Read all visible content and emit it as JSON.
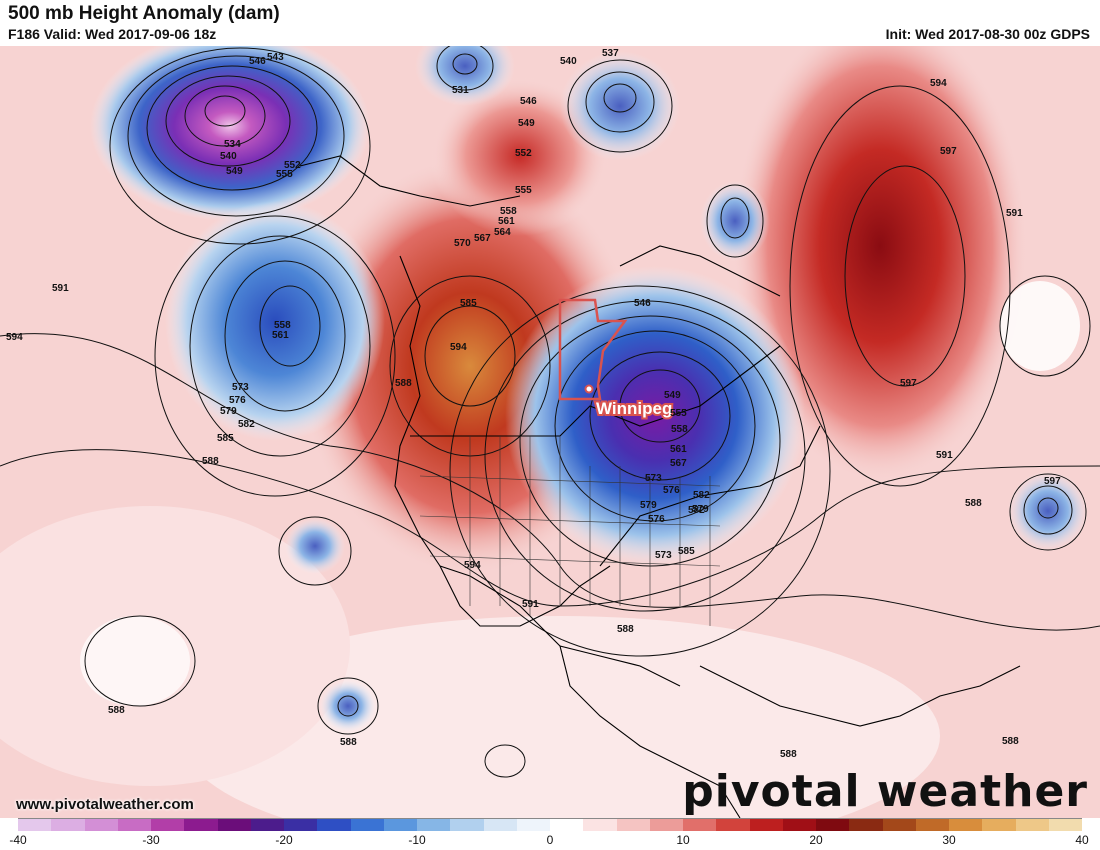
{
  "header": {
    "title": "500 mb Height Anomaly (dam)",
    "valid": "F186 Valid: Wed 2017-09-06 18z",
    "init": "Init: Wed 2017-08-30 00z GDPS"
  },
  "map": {
    "city_label": "Winnipeg",
    "website": "www.pivotalweather.com",
    "brand": "pivotal weather"
  },
  "colorbar": {
    "min": -40,
    "max": 40,
    "ticks": [
      "-40",
      "-30",
      "-20",
      "-10",
      "0",
      "10",
      "20",
      "30",
      "40"
    ],
    "colors": [
      "#e4c8ec",
      "#dcaee3",
      "#d38fd6",
      "#c86cc4",
      "#b23ea8",
      "#8c1b8f",
      "#6b0d7a",
      "#4c1c8c",
      "#3a2fa4",
      "#2e4fc4",
      "#3a73d4",
      "#5b97de",
      "#86b6e6",
      "#b1d0ee",
      "#d7e6f5",
      "#eef4fb",
      "#ffffff",
      "#fbe3e3",
      "#f5c4c2",
      "#ec9c99",
      "#e16f6a",
      "#d2433c",
      "#bd1f1f",
      "#a00f16",
      "#7f0a10",
      "#8a2a12",
      "#a3481a",
      "#c06a28",
      "#d88d3c",
      "#e6ad5e",
      "#eec888",
      "#f2dcae"
    ]
  },
  "contour_labels": [
    "543",
    "546",
    "531",
    "537",
    "540",
    "546",
    "549",
    "552",
    "555",
    "558",
    "561",
    "564",
    "567",
    "570",
    "573",
    "576",
    "579",
    "582",
    "585",
    "588",
    "591",
    "594",
    "597",
    "534",
    "540",
    "549",
    "552",
    "555",
    "558",
    "561",
    "573",
    "576",
    "579",
    "582",
    "585",
    "588",
    "591",
    "594",
    "597",
    "546",
    "549",
    "555",
    "558",
    "561",
    "567",
    "573",
    "576",
    "579",
    "582",
    "585",
    "588",
    "591",
    "594",
    "597",
    "588",
    "591",
    "594",
    "588",
    "588",
    "588",
    "588"
  ]
}
